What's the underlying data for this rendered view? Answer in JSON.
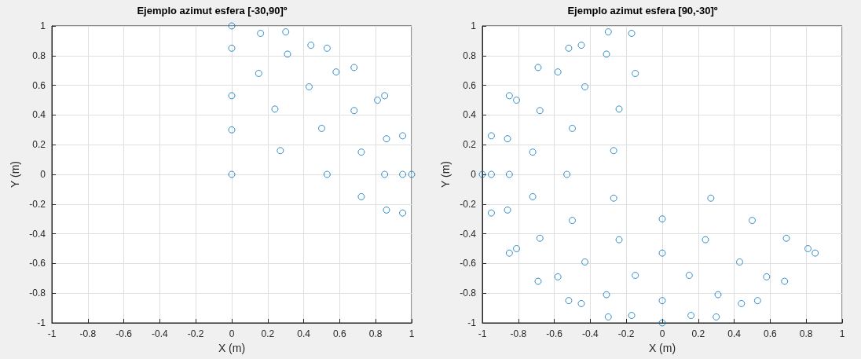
{
  "chart_data": [
    {
      "type": "scatter",
      "title": "Ejemplo azimut esfera [-30,90]º",
      "xlabel": "X (m)",
      "ylabel": "Y (m)",
      "color": "#0072bd",
      "marker": "circle",
      "grid": true,
      "x": [
        0,
        0.16,
        0.3,
        0,
        0.44,
        0.53,
        0.31,
        0.15,
        0.58,
        0.68,
        0.43,
        0,
        0.85,
        0.81,
        0.24,
        0.68,
        0,
        0.5,
        0.95,
        0.86,
        0.27,
        0.72,
        0,
        0.53,
        0.85,
        0.95,
        1,
        0.72,
        0.86,
        0.95
      ],
      "values": [
        1,
        0.95,
        0.96,
        0.85,
        0.87,
        0.85,
        0.81,
        0.68,
        0.69,
        0.72,
        0.59,
        0.53,
        0.53,
        0.5,
        0.44,
        0.43,
        0.3,
        0.31,
        0.26,
        0.24,
        0.16,
        0.15,
        0,
        0,
        0,
        0,
        0,
        -0.15,
        -0.24,
        -0.26
      ],
      "xlim": [
        -1,
        1
      ],
      "ylim": [
        -1,
        1
      ],
      "xticks": [
        -1,
        -0.8,
        -0.6,
        -0.4,
        -0.2,
        0,
        0.2,
        0.4,
        0.6,
        0.8,
        1
      ],
      "yticks": [
        -1,
        -0.8,
        -0.6,
        -0.4,
        -0.2,
        0,
        0.2,
        0.4,
        0.6,
        0.8,
        1
      ]
    },
    {
      "type": "scatter",
      "title": "Ejemplo azimut esfera [90,-30]º",
      "xlabel": "X (m)",
      "ylabel": "Y (m)",
      "color": "#0072bd",
      "marker": "circle",
      "grid": true,
      "x": [
        -0.3,
        -0.17,
        -0.52,
        -0.45,
        -0.31,
        -0.69,
        -0.58,
        -0.15,
        -0.43,
        -0.85,
        -0.81,
        -0.24,
        -0.68,
        -0.5,
        -0.95,
        -0.86,
        -0.27,
        -0.72,
        -1,
        -0.95,
        -0.85,
        -0.53,
        -0.95,
        -0.86,
        -0.72,
        -0.27,
        -0.5,
        -0.68,
        -0.81,
        -0.85,
        -0.43,
        -0.24,
        -0.69,
        -0.58,
        -0.15,
        -0.31,
        -0.45,
        -0.52,
        -0.3,
        -0.17,
        0,
        0,
        0,
        0,
        0.27,
        0.5,
        0.24,
        0.15,
        0.31,
        0.16,
        0.3,
        0.44,
        0.53,
        0.43,
        0.58,
        0.68,
        0.69,
        0.81,
        0.85
      ],
      "values": [
        0.96,
        0.95,
        0.85,
        0.87,
        0.81,
        0.72,
        0.69,
        0.68,
        0.59,
        0.53,
        0.5,
        0.44,
        0.43,
        0.31,
        0.26,
        0.24,
        0.16,
        0.15,
        0,
        0,
        0,
        0,
        -0.26,
        -0.24,
        -0.15,
        -0.16,
        -0.31,
        -0.43,
        -0.5,
        -0.53,
        -0.59,
        -0.44,
        -0.72,
        -0.69,
        -0.68,
        -0.81,
        -0.87,
        -0.85,
        -0.96,
        -0.95,
        -1,
        -0.85,
        -0.53,
        -0.3,
        -0.16,
        -0.31,
        -0.44,
        -0.68,
        -0.81,
        -0.95,
        -0.96,
        -0.87,
        -0.85,
        -0.59,
        -0.69,
        -0.72,
        -0.43,
        -0.5,
        -0.53
      ],
      "xlim": [
        -1,
        1
      ],
      "ylim": [
        -1,
        1
      ],
      "xticks": [
        -1,
        -0.8,
        -0.6,
        -0.4,
        -0.2,
        0,
        0.2,
        0.4,
        0.6,
        0.8,
        1
      ],
      "yticks": [
        -1,
        -0.8,
        -0.6,
        -0.4,
        -0.2,
        0,
        0.2,
        0.4,
        0.6,
        0.8,
        1
      ]
    }
  ]
}
